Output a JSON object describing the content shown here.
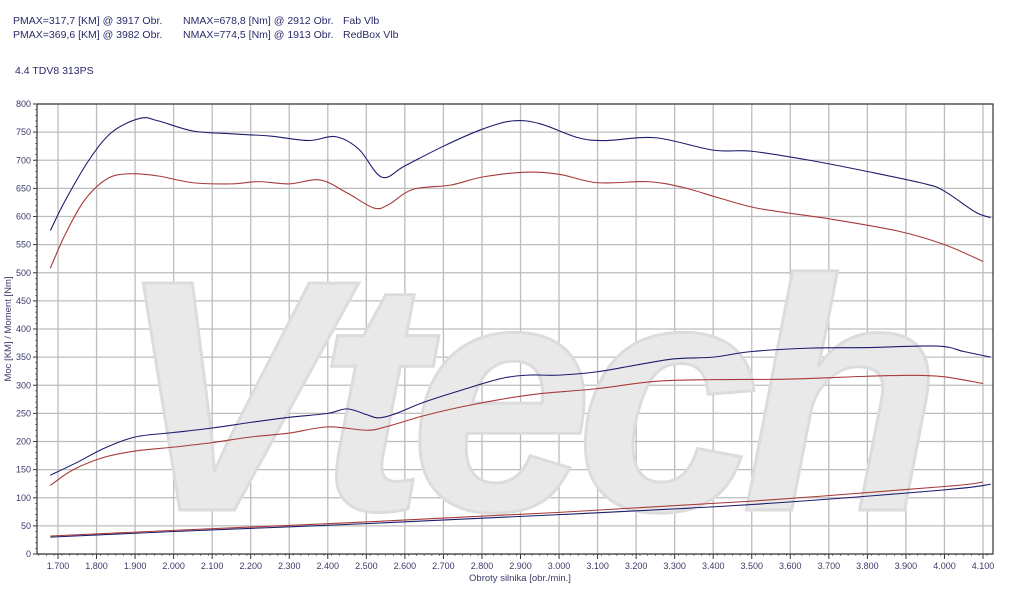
{
  "header": {
    "row1": {
      "pmax": "PMAX=317,7 [KM] @ 3917 Obr.",
      "nmax": "NMAX=678,8 [Nm] @ 2912 Obr.",
      "name": "Fab Vlb"
    },
    "row2": {
      "pmax": "PMAX=369,6 [KM] @ 3982 Obr.",
      "nmax": "NMAX=774,5 [Nm] @ 1913 Obr.",
      "name": "RedBox Vlb"
    },
    "vehicle": "4.4 TDV8 313PS"
  },
  "watermark": "Vtech",
  "chart_data": {
    "type": "line",
    "title": "",
    "xlabel": "Obroty silnika [obr./min.]",
    "ylabel": "Moc [KM] / Moment [Nm]",
    "xlim": [
      1640,
      4150
    ],
    "ylim": [
      0,
      800
    ],
    "grid": true,
    "x_ticks": [
      1700,
      1800,
      1900,
      2000,
      2100,
      2200,
      2300,
      2400,
      2500,
      2600,
      2700,
      2800,
      2900,
      3000,
      3100,
      3200,
      3300,
      3400,
      3500,
      3600,
      3700,
      3800,
      3900,
      4000,
      4100
    ],
    "x_tick_labels": [
      "1.700",
      "1.800",
      "1.900",
      "2.000",
      "2.100",
      "2.200",
      "2.300",
      "2.400",
      "2.500",
      "2.600",
      "2.700",
      "2.800",
      "2.900",
      "3.000",
      "3.100",
      "3.200",
      "3.300",
      "3.400",
      "3.500",
      "3.600",
      "3.700",
      "3.800",
      "3.900",
      "4.000",
      "4.100"
    ],
    "y_ticks": [
      0,
      50,
      100,
      150,
      200,
      250,
      300,
      350,
      400,
      450,
      500,
      550,
      600,
      650,
      700,
      750,
      800
    ],
    "colors": {
      "stock": "#a83a3a",
      "redbox": "#1c1c6e"
    },
    "series": [
      {
        "key": "redbox_torque",
        "color": "#1c1c6e",
        "points": [
          [
            1680,
            575
          ],
          [
            1720,
            630
          ],
          [
            1780,
            700
          ],
          [
            1840,
            750
          ],
          [
            1913,
            774.5
          ],
          [
            1960,
            770
          ],
          [
            2050,
            752
          ],
          [
            2150,
            747
          ],
          [
            2250,
            743
          ],
          [
            2350,
            735
          ],
          [
            2420,
            742
          ],
          [
            2480,
            720
          ],
          [
            2540,
            670
          ],
          [
            2600,
            690
          ],
          [
            2700,
            725
          ],
          [
            2800,
            755
          ],
          [
            2880,
            770
          ],
          [
            2950,
            765
          ],
          [
            3050,
            740
          ],
          [
            3120,
            735
          ],
          [
            3250,
            740
          ],
          [
            3400,
            718
          ],
          [
            3500,
            716
          ],
          [
            3650,
            700
          ],
          [
            3800,
            680
          ],
          [
            3950,
            658
          ],
          [
            4000,
            645
          ],
          [
            4080,
            608
          ],
          [
            4120,
            598
          ]
        ]
      },
      {
        "key": "stock_torque",
        "color": "#a83a3a",
        "points": [
          [
            1680,
            508
          ],
          [
            1720,
            570
          ],
          [
            1770,
            630
          ],
          [
            1830,
            668
          ],
          [
            1890,
            676
          ],
          [
            1960,
            672
          ],
          [
            2050,
            660
          ],
          [
            2150,
            658
          ],
          [
            2220,
            662
          ],
          [
            2300,
            658
          ],
          [
            2380,
            665
          ],
          [
            2450,
            642
          ],
          [
            2520,
            615
          ],
          [
            2560,
            622
          ],
          [
            2620,
            648
          ],
          [
            2720,
            656
          ],
          [
            2800,
            670
          ],
          [
            2912,
            678.8
          ],
          [
            3000,
            675
          ],
          [
            3100,
            660
          ],
          [
            3230,
            662
          ],
          [
            3320,
            652
          ],
          [
            3420,
            632
          ],
          [
            3520,
            614
          ],
          [
            3700,
            596
          ],
          [
            3880,
            574
          ],
          [
            4000,
            550
          ],
          [
            4100,
            520
          ]
        ]
      },
      {
        "key": "redbox_power",
        "color": "#1c1c6e",
        "points": [
          [
            1680,
            140
          ],
          [
            1750,
            163
          ],
          [
            1820,
            188
          ],
          [
            1900,
            208
          ],
          [
            2000,
            216
          ],
          [
            2100,
            224
          ],
          [
            2200,
            234
          ],
          [
            2300,
            243
          ],
          [
            2400,
            250
          ],
          [
            2450,
            258
          ],
          [
            2500,
            248
          ],
          [
            2530,
            242
          ],
          [
            2570,
            248
          ],
          [
            2650,
            270
          ],
          [
            2750,
            292
          ],
          [
            2850,
            312
          ],
          [
            2920,
            318
          ],
          [
            3000,
            318
          ],
          [
            3100,
            324
          ],
          [
            3200,
            336
          ],
          [
            3300,
            347
          ],
          [
            3400,
            350
          ],
          [
            3500,
            360
          ],
          [
            3650,
            366
          ],
          [
            3800,
            367
          ],
          [
            3982,
            369.6
          ],
          [
            4050,
            360
          ],
          [
            4120,
            350
          ]
        ]
      },
      {
        "key": "stock_power",
        "color": "#a83a3a",
        "points": [
          [
            1680,
            122
          ],
          [
            1740,
            150
          ],
          [
            1820,
            172
          ],
          [
            1900,
            183
          ],
          [
            2000,
            190
          ],
          [
            2100,
            198
          ],
          [
            2200,
            208
          ],
          [
            2300,
            215
          ],
          [
            2400,
            226
          ],
          [
            2500,
            220
          ],
          [
            2550,
            226
          ],
          [
            2650,
            246
          ],
          [
            2750,
            262
          ],
          [
            2850,
            275
          ],
          [
            2950,
            285
          ],
          [
            3100,
            294
          ],
          [
            3250,
            307
          ],
          [
            3400,
            310
          ],
          [
            3600,
            311
          ],
          [
            3800,
            316
          ],
          [
            3917,
            317.7
          ],
          [
            4000,
            315
          ],
          [
            4100,
            303
          ]
        ]
      },
      {
        "key": "redbox_low",
        "color": "#1c1c6e",
        "points": [
          [
            1680,
            30
          ],
          [
            2000,
            40
          ],
          [
            2500,
            54
          ],
          [
            3000,
            70
          ],
          [
            3500,
            88
          ],
          [
            4000,
            114
          ],
          [
            4120,
            124
          ]
        ]
      },
      {
        "key": "stock_low",
        "color": "#a83a3a",
        "points": [
          [
            1680,
            32
          ],
          [
            2000,
            42
          ],
          [
            2500,
            57
          ],
          [
            3000,
            74
          ],
          [
            3500,
            94
          ],
          [
            4000,
            120
          ],
          [
            4100,
            128
          ]
        ]
      }
    ]
  }
}
